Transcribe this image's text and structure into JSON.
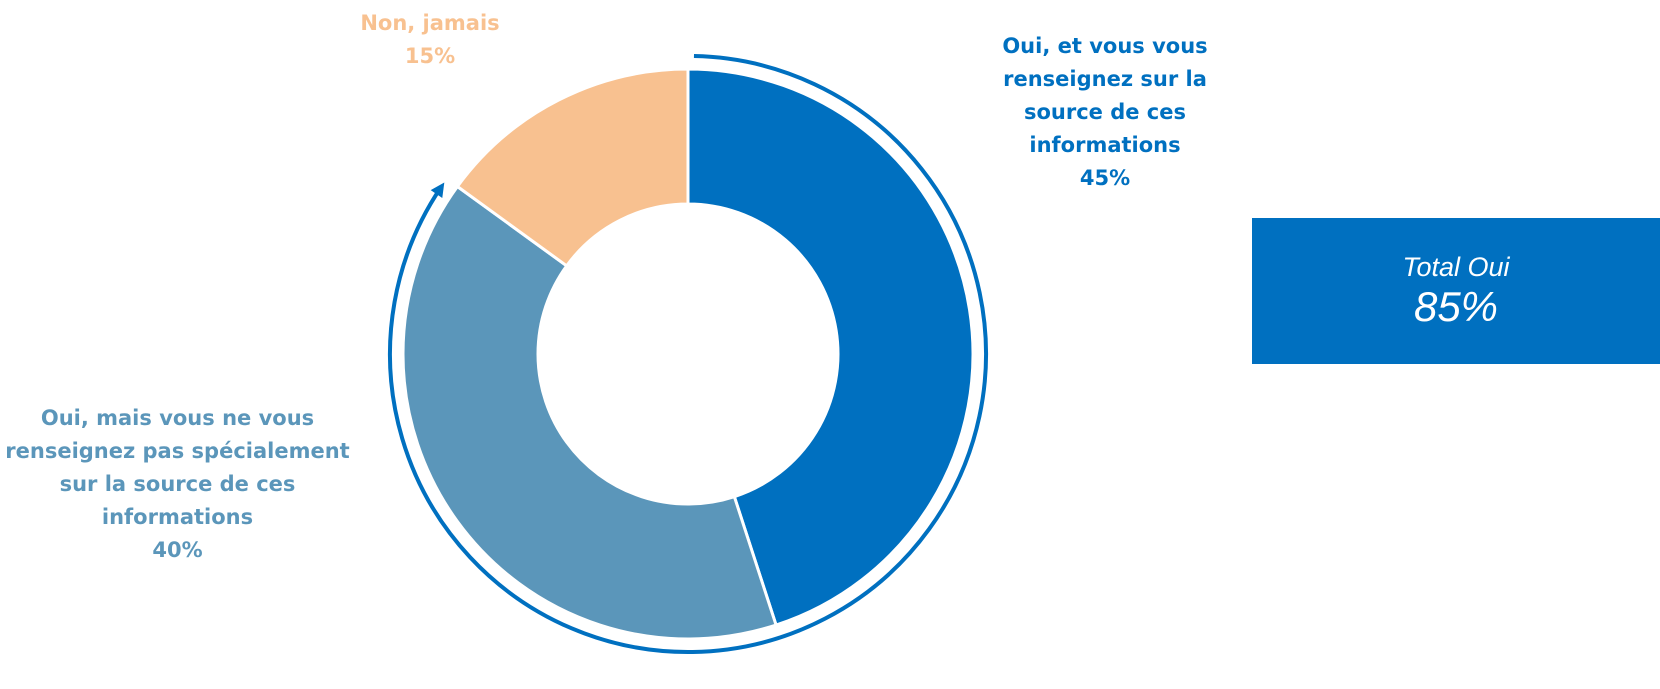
{
  "chart_data": {
    "type": "pie",
    "variant": "donut",
    "slices": [
      {
        "lines": [
          "Oui, et vous vous",
          "renseignez sur la",
          "source de ces",
          "informations"
        ],
        "value": 45,
        "value_label": "45%",
        "color": "#0070C0"
      },
      {
        "lines": [
          "Oui, mais vous ne vous",
          "renseignez pas spécialement",
          "sur la source de ces",
          "informations"
        ],
        "value": 40,
        "value_label": "40%",
        "color": "#5B96BA"
      },
      {
        "lines": [
          "Non, jamais"
        ],
        "value": 15,
        "value_label": "15%",
        "color": "#F8C190"
      }
    ],
    "legend": "none",
    "annotation": {
      "label": "Total Oui",
      "value": "85%",
      "color": "#0070C0",
      "arrow_color": "#0070C0"
    }
  }
}
